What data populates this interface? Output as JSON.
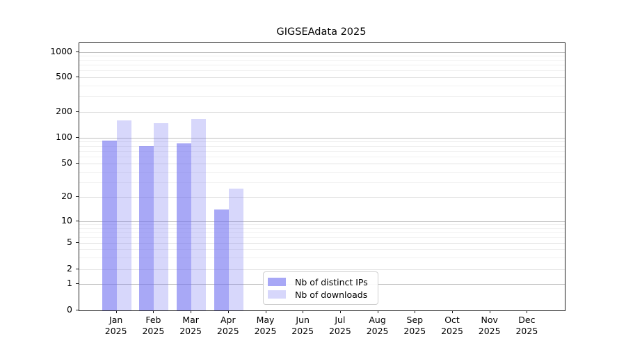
{
  "figure": {
    "title": "GIGSEAdata 2025"
  },
  "chart_data": {
    "type": "bar",
    "title": "GIGSEAdata 2025",
    "y_scale": "symlog",
    "ylim": [
      0,
      1200
    ],
    "grid": true,
    "legend_position": "lower-center",
    "categories": [
      "Jan",
      "Feb",
      "Mar",
      "Apr",
      "May",
      "Jun",
      "Jul",
      "Aug",
      "Sep",
      "Oct",
      "Nov",
      "Dec"
    ],
    "category_year": "2025",
    "y_ticks": [
      0,
      1,
      2,
      5,
      10,
      20,
      50,
      100,
      200,
      500,
      1000
    ],
    "series": [
      {
        "name": "Nb of distinct IPs",
        "color_hex": "#6e6ef0",
        "alpha": 0.6,
        "values": [
          93,
          80,
          85,
          14,
          0,
          0,
          0,
          0,
          0,
          0,
          0,
          0
        ]
      },
      {
        "name": "Nb of downloads",
        "color_hex": "#6e6ef0",
        "alpha": 0.28,
        "values": [
          160,
          148,
          165,
          25,
          0,
          0,
          0,
          0,
          0,
          0,
          0,
          0
        ]
      }
    ]
  }
}
